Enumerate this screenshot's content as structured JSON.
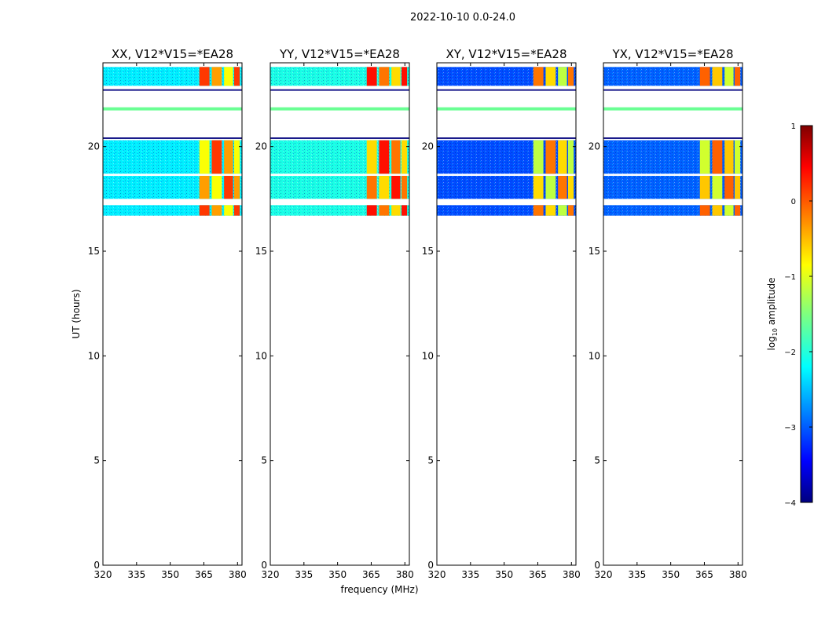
{
  "chart_data": {
    "type": "heatmap",
    "suptitle": "2022-10-10 0.0-24.0",
    "xlabel": "frequency (MHz)",
    "ylabel": "UT (hours)",
    "xlim": [
      320,
      382
    ],
    "ylim": [
      0,
      24
    ],
    "xticks": [
      320,
      335,
      350,
      365,
      380
    ],
    "yticks": [
      0,
      5,
      10,
      15,
      20
    ],
    "panels": [
      {
        "title": "XX, V12*V15=*EA28",
        "pol": "XX",
        "bg_log10_amp": -2.2,
        "bright_log10_amp": 0.1
      },
      {
        "title": "YY, V12*V15=*EA28",
        "pol": "YY",
        "bg_log10_amp": -2.0,
        "bright_log10_amp": 0.3
      },
      {
        "title": "XY, V12*V15=*EA28",
        "pol": "XY",
        "bg_log10_amp": -3.0,
        "bright_log10_amp": -0.2
      },
      {
        "title": "YX, V12*V15=*EA28",
        "pol": "YX",
        "bg_log10_amp": -2.9,
        "bright_log10_amp": -0.1
      }
    ],
    "data_time_ranges_ut_hours": [
      [
        16.7,
        17.2
      ],
      [
        17.5,
        18.6
      ],
      [
        18.7,
        20.3
      ],
      [
        22.9,
        23.8
      ]
    ],
    "sparse_scan_times_ut_hours": [
      20.4,
      21.8,
      22.7
    ],
    "bright_frequency_bands_mhz": [
      [
        363,
        367.5
      ],
      [
        368.5,
        373
      ],
      [
        374,
        378
      ],
      [
        378.5,
        381
      ]
    ],
    "colorbar": {
      "label_prefix": "log",
      "label_sub": "10",
      "label_suffix": " amplitude",
      "min": -4,
      "max": 1,
      "ticks": [
        "1",
        "0",
        "−1",
        "−2",
        "−3",
        "−4"
      ],
      "colormap": "jet"
    }
  }
}
